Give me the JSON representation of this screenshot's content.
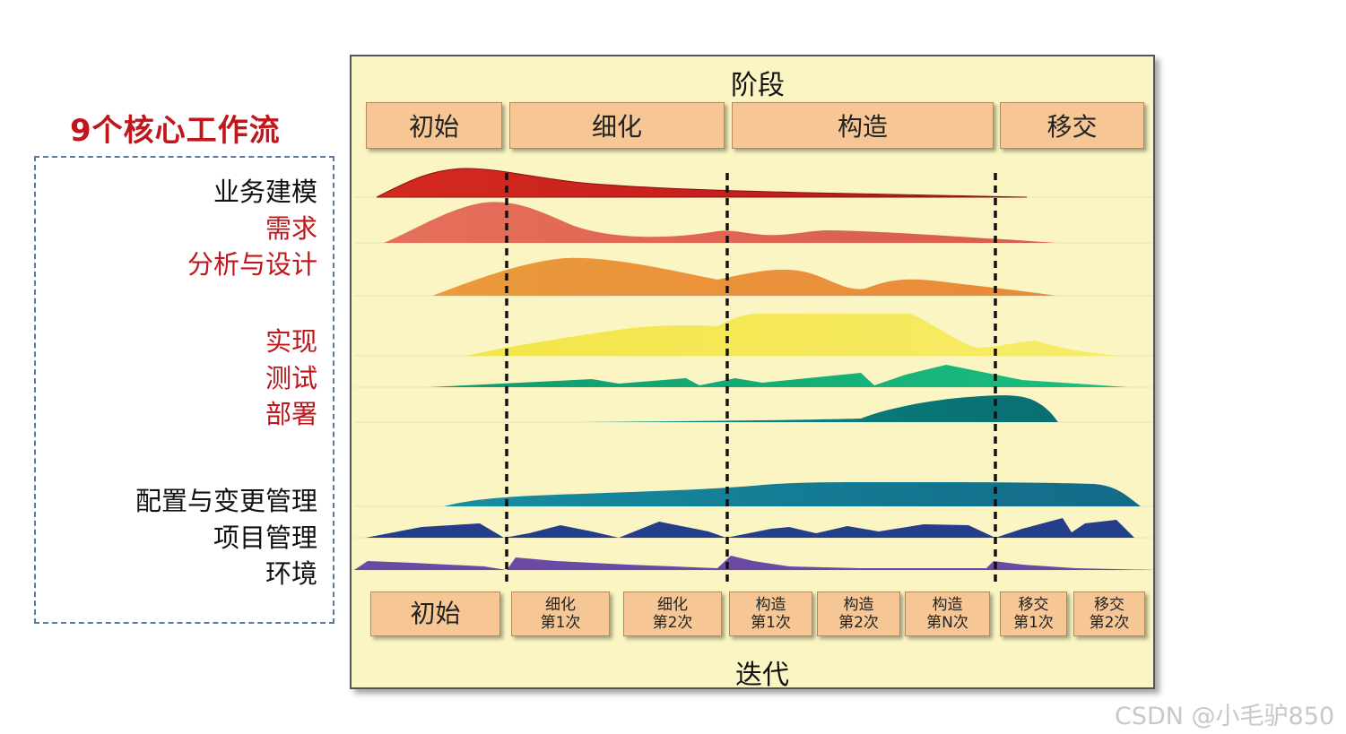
{
  "heading": "9个核心工作流",
  "workflows": {
    "business_modeling": "业务建模",
    "requirements": "需求",
    "analysis_design": "分析与设计",
    "implementation": "实现",
    "test": "测试",
    "deployment": "部署",
    "config_change": "配置与变更管理",
    "project_mgmt": "项目管理",
    "environment": "环境"
  },
  "panel": {
    "phase_title": "阶段",
    "iteration_title": "迭代",
    "phases": [
      "初始",
      "细化",
      "构造",
      "移交"
    ],
    "iterations": [
      {
        "l1": "初始",
        "l2": ""
      },
      {
        "l1": "细化",
        "l2": "第1次"
      },
      {
        "l1": "细化",
        "l2": "第2次"
      },
      {
        "l1": "构造",
        "l2": "第1次"
      },
      {
        "l1": "构造",
        "l2": "第2次"
      },
      {
        "l1": "构造",
        "l2": "第N次"
      },
      {
        "l1": "移交",
        "l2": "第1次"
      },
      {
        "l1": "移交",
        "l2": "第2次"
      }
    ]
  },
  "colors": {
    "business_modeling": "#d42a1e",
    "requirements": "#e5705a",
    "analysis_design": "#eb9a3c",
    "implementation": "#f6ec50",
    "test": "#16b07c",
    "deployment": "#0b8a86",
    "config_change": "#178a9e",
    "project_mgmt": "#243e8c",
    "environment": "#6a4aa4"
  },
  "watermark": "CSDN @小毛驴850"
}
